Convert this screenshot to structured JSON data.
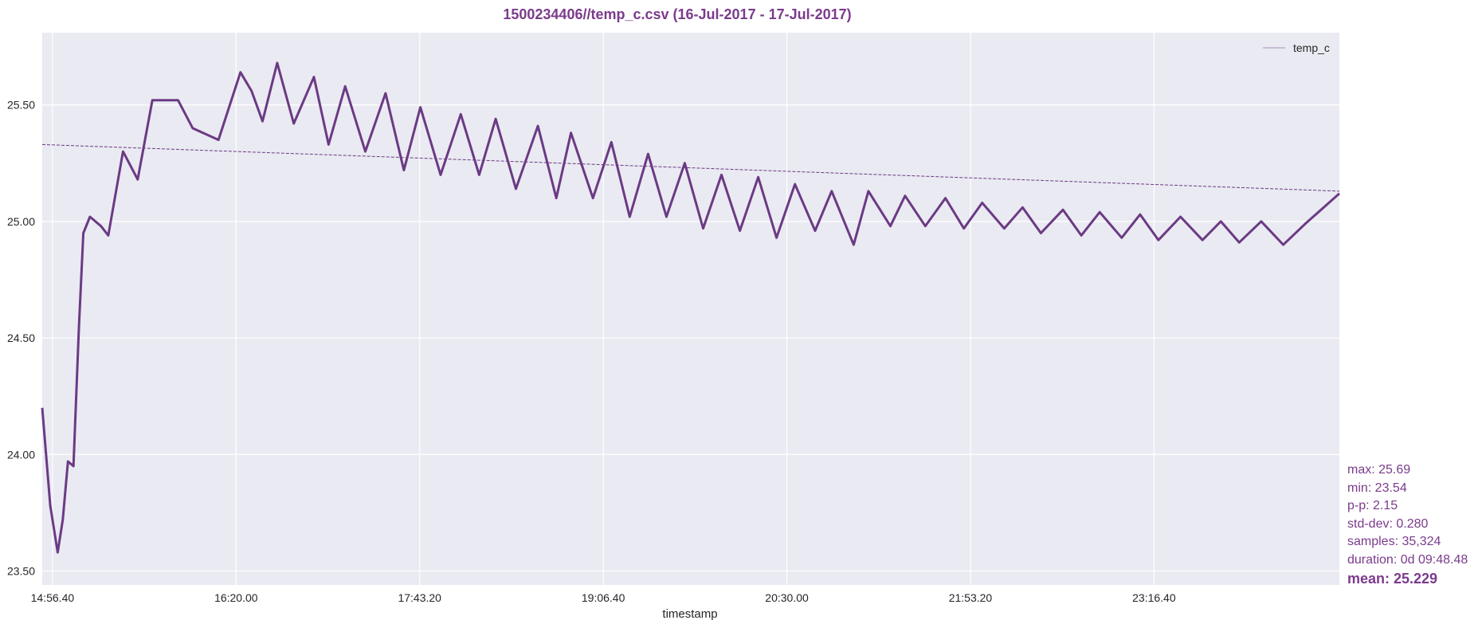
{
  "chart_data": {
    "type": "line",
    "title": "1500234406//temp_c.csv (16-Jul-2017 - 17-Jul-2017)",
    "xlabel": "timestamp",
    "ylabel": "",
    "x_start": "14:52:00",
    "x_end": "00:40:48",
    "xlim_seconds": [
      0,
      35328
    ],
    "ylim": [
      23.44,
      25.81
    ],
    "x_ticks": [
      {
        "label": "14:56.40",
        "t": 280
      },
      {
        "label": "16:20.00",
        "t": 5280
      },
      {
        "label": "17:43.20",
        "t": 10280
      },
      {
        "label": "19:06.40",
        "t": 15280
      },
      {
        "label": "20:30.00",
        "t": 20280
      },
      {
        "label": "21:53.20",
        "t": 25280
      },
      {
        "label": "23:16.40",
        "t": 30280
      }
    ],
    "y_ticks": [
      {
        "label": "23.50",
        "v": 23.5
      },
      {
        "label": "24.00",
        "v": 24.0
      },
      {
        "label": "24.50",
        "v": 24.5
      },
      {
        "label": "25.00",
        "v": 25.0
      },
      {
        "label": "25.50",
        "v": 25.5
      }
    ],
    "grid": true,
    "legend": {
      "position": "top-right",
      "entries": [
        "temp_c"
      ]
    },
    "colors": {
      "line": "#6b3a84",
      "text": "#7b3b8c",
      "background": "#eaeaf2",
      "grid": "#ffffff"
    },
    "series": [
      {
        "name": "temp_c",
        "x_seconds": [
          0,
          220,
          420,
          560,
          700,
          850,
          1000,
          1120,
          1300,
          1600,
          1800,
          2200,
          2600,
          3000,
          3700,
          4100,
          4800,
          5400,
          5700,
          6000,
          6400,
          6850,
          7400,
          7800,
          8250,
          8800,
          9350,
          9850,
          10300,
          10850,
          11400,
          11900,
          12350,
          12900,
          13500,
          14000,
          14400,
          15000,
          15500,
          16000,
          16500,
          17000,
          17500,
          18000,
          18500,
          19000,
          19500,
          20000,
          20500,
          21050,
          21500,
          22100,
          22500,
          23100,
          23500,
          24050,
          24600,
          25100,
          25600,
          26200,
          26700,
          27200,
          27800,
          28300,
          28800,
          29400,
          29900,
          30400,
          31000,
          31600,
          32100,
          32600,
          33200,
          33800,
          34400,
          35328
        ],
        "values": [
          24.2,
          23.78,
          23.58,
          23.72,
          23.97,
          23.95,
          24.55,
          24.95,
          25.02,
          24.98,
          24.94,
          25.3,
          25.18,
          25.52,
          25.52,
          25.4,
          25.35,
          25.64,
          25.56,
          25.43,
          25.68,
          25.42,
          25.62,
          25.33,
          25.58,
          25.3,
          25.55,
          25.22,
          25.49,
          25.2,
          25.46,
          25.2,
          25.44,
          25.14,
          25.41,
          25.1,
          25.38,
          25.1,
          25.34,
          25.02,
          25.29,
          25.02,
          25.25,
          24.97,
          25.2,
          24.96,
          25.19,
          24.93,
          25.16,
          24.96,
          25.13,
          24.9,
          25.13,
          24.98,
          25.11,
          24.98,
          25.1,
          24.97,
          25.08,
          24.97,
          25.06,
          24.95,
          25.05,
          24.94,
          25.04,
          24.93,
          25.03,
          24.92,
          25.02,
          24.92,
          25.0,
          24.91,
          25.0,
          24.9,
          24.99,
          25.12
        ]
      }
    ],
    "trend": {
      "style": "dashed",
      "values": [
        25.33,
        25.13
      ]
    }
  },
  "stats": {
    "max": "max: 25.69",
    "min": "min: 23.54",
    "pp": "p-p: 2.15",
    "std": "std-dev: 0.280",
    "samples": "samples: 35,324",
    "duration": "duration: 0d 09:48.48",
    "mean": "mean: 25.229"
  }
}
